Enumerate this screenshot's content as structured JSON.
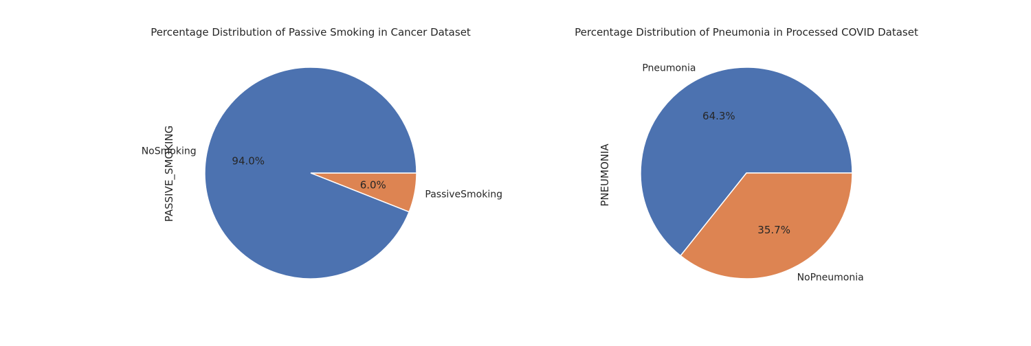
{
  "figure": {
    "background": "#ffffff"
  },
  "chart_data": [
    {
      "type": "pie",
      "title": "Percentage Distribution of Passive Smoking in Cancer Dataset",
      "ylabel": "PASSIVE_SMOKING",
      "xlabel": "",
      "start_angle_deg": 0,
      "direction": "clockwise",
      "slices": [
        {
          "label": "PassiveSmoking",
          "value": 6.0,
          "pct_label": "6.0%",
          "color": "#dd8452"
        },
        {
          "label": "NoSmoking",
          "value": 94.0,
          "pct_label": "94.0%",
          "color": "#4c72b0"
        }
      ]
    },
    {
      "type": "pie",
      "title": "Percentage Distribution of Pneumonia in Processed COVID Dataset",
      "ylabel": "PNEUMONIA",
      "xlabel": "",
      "start_angle_deg": 0,
      "direction": "counterclockwise",
      "slices": [
        {
          "label": "Pneumonia",
          "value": 64.3,
          "pct_label": "64.3%",
          "color": "#4c72b0"
        },
        {
          "label": "NoPneumonia",
          "value": 35.7,
          "pct_label": "35.7%",
          "color": "#dd8452"
        }
      ]
    }
  ]
}
